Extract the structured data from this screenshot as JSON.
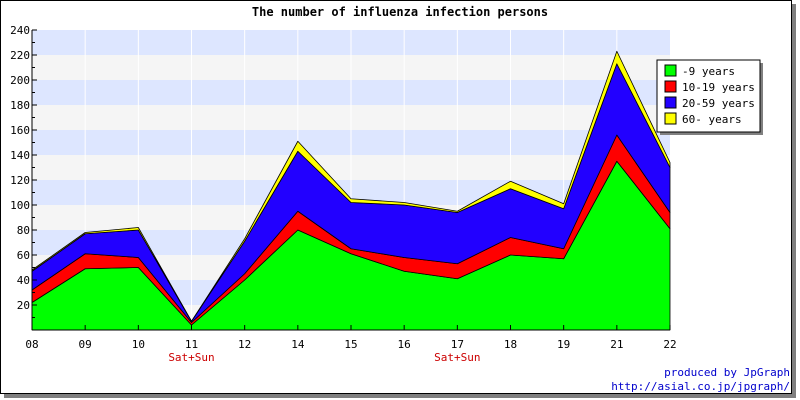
{
  "chart_data": {
    "type": "area",
    "stacked": true,
    "title": "The number of influenza infection persons",
    "categories": [
      "08",
      "09",
      "10",
      "11",
      "12",
      "14",
      "15",
      "16",
      "17",
      "18",
      "19",
      "21",
      "22"
    ],
    "category_notes": [
      "",
      "",
      "",
      "Sat+Sun",
      "",
      "",
      "",
      "",
      "Sat+Sun",
      "",
      "",
      "",
      ""
    ],
    "series": [
      {
        "name": "-9 years",
        "color": "#00ff00",
        "values": [
          22,
          49,
          50,
          4,
          40,
          80,
          61,
          47,
          41,
          60,
          57,
          135,
          81
        ]
      },
      {
        "name": "10-19 years",
        "color": "#ff0000",
        "values": [
          10,
          12,
          8,
          2,
          5,
          15,
          4,
          11,
          12,
          14,
          8,
          21,
          13
        ]
      },
      {
        "name": "20-59 years",
        "color": "#2200ff",
        "values": [
          15,
          16,
          22,
          1,
          26,
          48,
          37,
          42,
          41,
          39,
          32,
          57,
          36
        ]
      },
      {
        "name": "60- years",
        "color": "#ffff00",
        "values": [
          1,
          1,
          2,
          0,
          2,
          8,
          3,
          2,
          1,
          6,
          4,
          10,
          4
        ]
      }
    ],
    "ylim": [
      0,
      240
    ],
    "yticks": [
      20,
      40,
      60,
      80,
      100,
      120,
      140,
      160,
      180,
      200,
      220,
      240
    ],
    "grid": true,
    "legend": "top-right",
    "band_colors": [
      "#f5f5f5",
      "#dde6ff"
    ],
    "note_color": "#cc0000"
  },
  "credits": {
    "line1": "produced by JpGraph",
    "line2": "http://asial.co.jp/jpgraph/"
  }
}
